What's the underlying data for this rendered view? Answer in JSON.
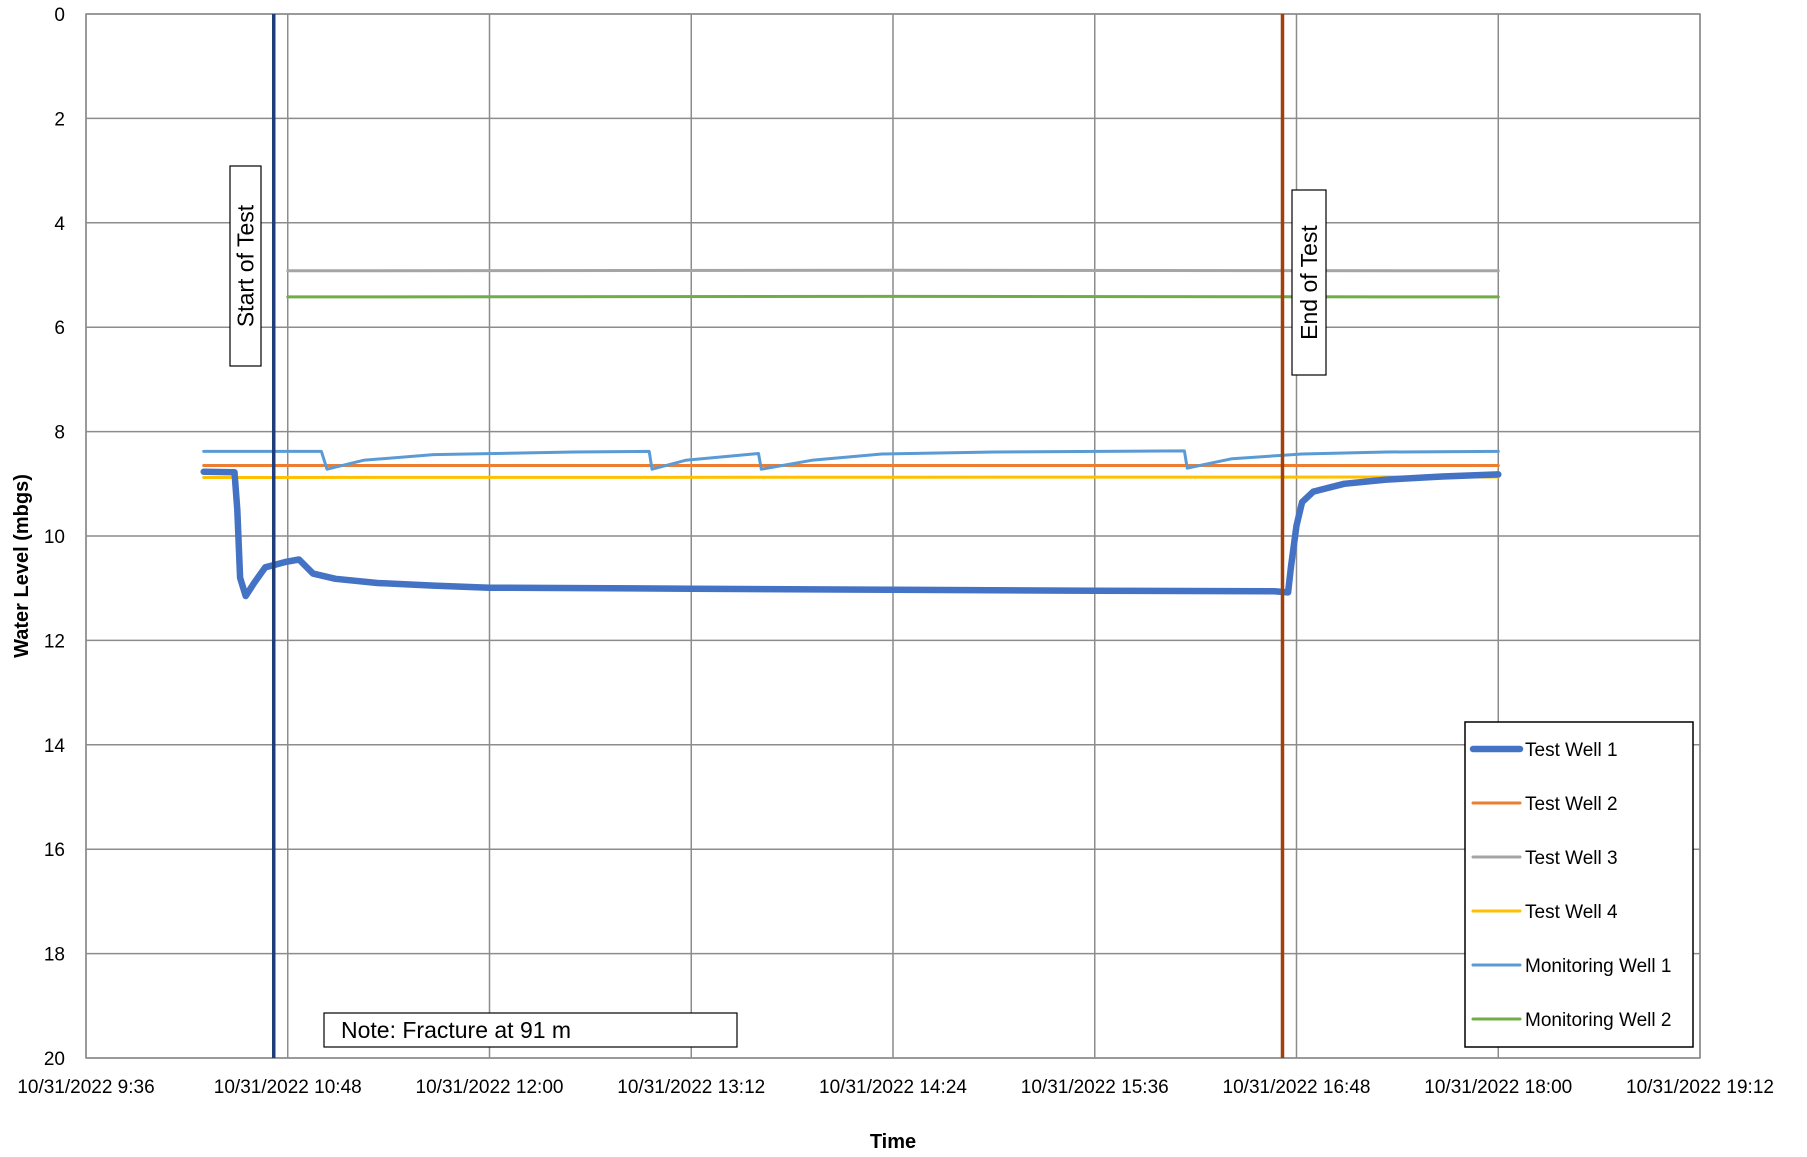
{
  "chart_data": {
    "type": "line",
    "xlabel": "Time",
    "ylabel": "Water Level (mbgs)",
    "x_ticks": [
      "10/31/2022 9:36",
      "10/31/2022 10:48",
      "10/31/2022 12:00",
      "10/31/2022 13:12",
      "10/31/2022 14:24",
      "10/31/2022 15:36",
      "10/31/2022 16:48",
      "10/31/2022 18:00",
      "10/31/2022 19:12"
    ],
    "xlim": [
      "10/31/2022 9:36",
      "10/31/2022 19:12"
    ],
    "ylim": [
      0,
      20
    ],
    "y_inverted": true,
    "y_ticks": [
      0,
      2,
      4,
      6,
      8,
      10,
      12,
      14,
      16,
      18,
      20
    ],
    "grid": true,
    "legend_position": "bottom-right",
    "colors": {
      "test_well_1": "#4472C4",
      "test_well_2": "#ED7D31",
      "test_well_3": "#A5A5A5",
      "test_well_4": "#FFC000",
      "monitoring_well_1": "#5B9BD5",
      "monitoring_well_2": "#70AD47",
      "start_line": "#1F3D7A",
      "end_line": "#A0400A"
    },
    "series": [
      {
        "name": "Test Well 1",
        "key": "test_well_1",
        "points": [
          [
            "10/31/2022 10:18",
            8.77
          ],
          [
            "10/31/2022 10:29",
            8.78
          ],
          [
            "10/31/2022 10:30",
            9.5
          ],
          [
            "10/31/2022 10:31",
            10.8
          ],
          [
            "10/31/2022 10:33",
            11.15
          ],
          [
            "10/31/2022 10:36",
            10.9
          ],
          [
            "10/31/2022 10:40",
            10.6
          ],
          [
            "10/31/2022 10:47",
            10.5
          ],
          [
            "10/31/2022 10:52",
            10.45
          ],
          [
            "10/31/2022 10:57",
            10.72
          ],
          [
            "10/31/2022 11:05",
            10.82
          ],
          [
            "10/31/2022 11:20",
            10.9
          ],
          [
            "10/31/2022 11:40",
            10.95
          ],
          [
            "10/31/2022 12:00",
            10.99
          ],
          [
            "10/31/2022 13:12",
            11.01
          ],
          [
            "10/31/2022 14:24",
            11.03
          ],
          [
            "10/31/2022 15:36",
            11.05
          ],
          [
            "10/31/2022 16:40",
            11.06
          ],
          [
            "10/31/2022 16:45",
            11.08
          ],
          [
            "10/31/2022 16:46",
            10.6
          ],
          [
            "10/31/2022 16:48",
            9.8
          ],
          [
            "10/31/2022 16:50",
            9.35
          ],
          [
            "10/31/2022 16:54",
            9.15
          ],
          [
            "10/31/2022 17:05",
            9.0
          ],
          [
            "10/31/2022 17:20",
            8.92
          ],
          [
            "10/31/2022 17:40",
            8.86
          ],
          [
            "10/31/2022 18:00",
            8.82
          ]
        ]
      },
      {
        "name": "Test Well 2",
        "key": "test_well_2",
        "points": [
          [
            "10/31/2022 10:18",
            8.65
          ],
          [
            "10/31/2022 18:00",
            8.65
          ]
        ]
      },
      {
        "name": "Test Well 3",
        "key": "test_well_3",
        "points": [
          [
            "10/31/2022 10:48",
            4.92
          ],
          [
            "10/31/2022 14:24",
            4.91
          ],
          [
            "10/31/2022 18:00",
            4.92
          ]
        ]
      },
      {
        "name": "Test Well 4",
        "key": "test_well_4",
        "points": [
          [
            "10/31/2022 10:18",
            8.88
          ],
          [
            "10/31/2022 18:00",
            8.87
          ]
        ]
      },
      {
        "name": "Monitoring Well 1",
        "key": "monitoring_well_1",
        "points": [
          [
            "10/31/2022 10:18",
            8.38
          ],
          [
            "10/31/2022 11:00",
            8.38
          ],
          [
            "10/31/2022 11:02",
            8.72
          ],
          [
            "10/31/2022 11:15",
            8.55
          ],
          [
            "10/31/2022 11:40",
            8.44
          ],
          [
            "10/31/2022 12:30",
            8.39
          ],
          [
            "10/31/2022 12:57",
            8.38
          ],
          [
            "10/31/2022 12:58",
            8.72
          ],
          [
            "10/31/2022 13:10",
            8.55
          ],
          [
            "10/31/2022 13:36",
            8.42
          ],
          [
            "10/31/2022 13:37",
            8.72
          ],
          [
            "10/31/2022 13:55",
            8.55
          ],
          [
            "10/31/2022 14:20",
            8.43
          ],
          [
            "10/31/2022 15:00",
            8.39
          ],
          [
            "10/31/2022 16:08",
            8.37
          ],
          [
            "10/31/2022 16:09",
            8.7
          ],
          [
            "10/31/2022 16:25",
            8.52
          ],
          [
            "10/31/2022 16:50",
            8.43
          ],
          [
            "10/31/2022 17:20",
            8.39
          ],
          [
            "10/31/2022 18:00",
            8.38
          ]
        ]
      },
      {
        "name": "Monitoring Well 2",
        "key": "monitoring_well_2",
        "points": [
          [
            "10/31/2022 10:48",
            5.42
          ],
          [
            "10/31/2022 14:24",
            5.41
          ],
          [
            "10/31/2022 18:00",
            5.42
          ]
        ]
      }
    ],
    "vertical_markers": [
      {
        "label": "Start of Test",
        "x": "10/31/2022 10:43",
        "key": "start_line"
      },
      {
        "label": "End of Test",
        "x": "10/31/2022 16:43",
        "key": "end_line"
      }
    ],
    "annotations": [
      {
        "text": "Note: Fracture at 91 m"
      }
    ]
  }
}
